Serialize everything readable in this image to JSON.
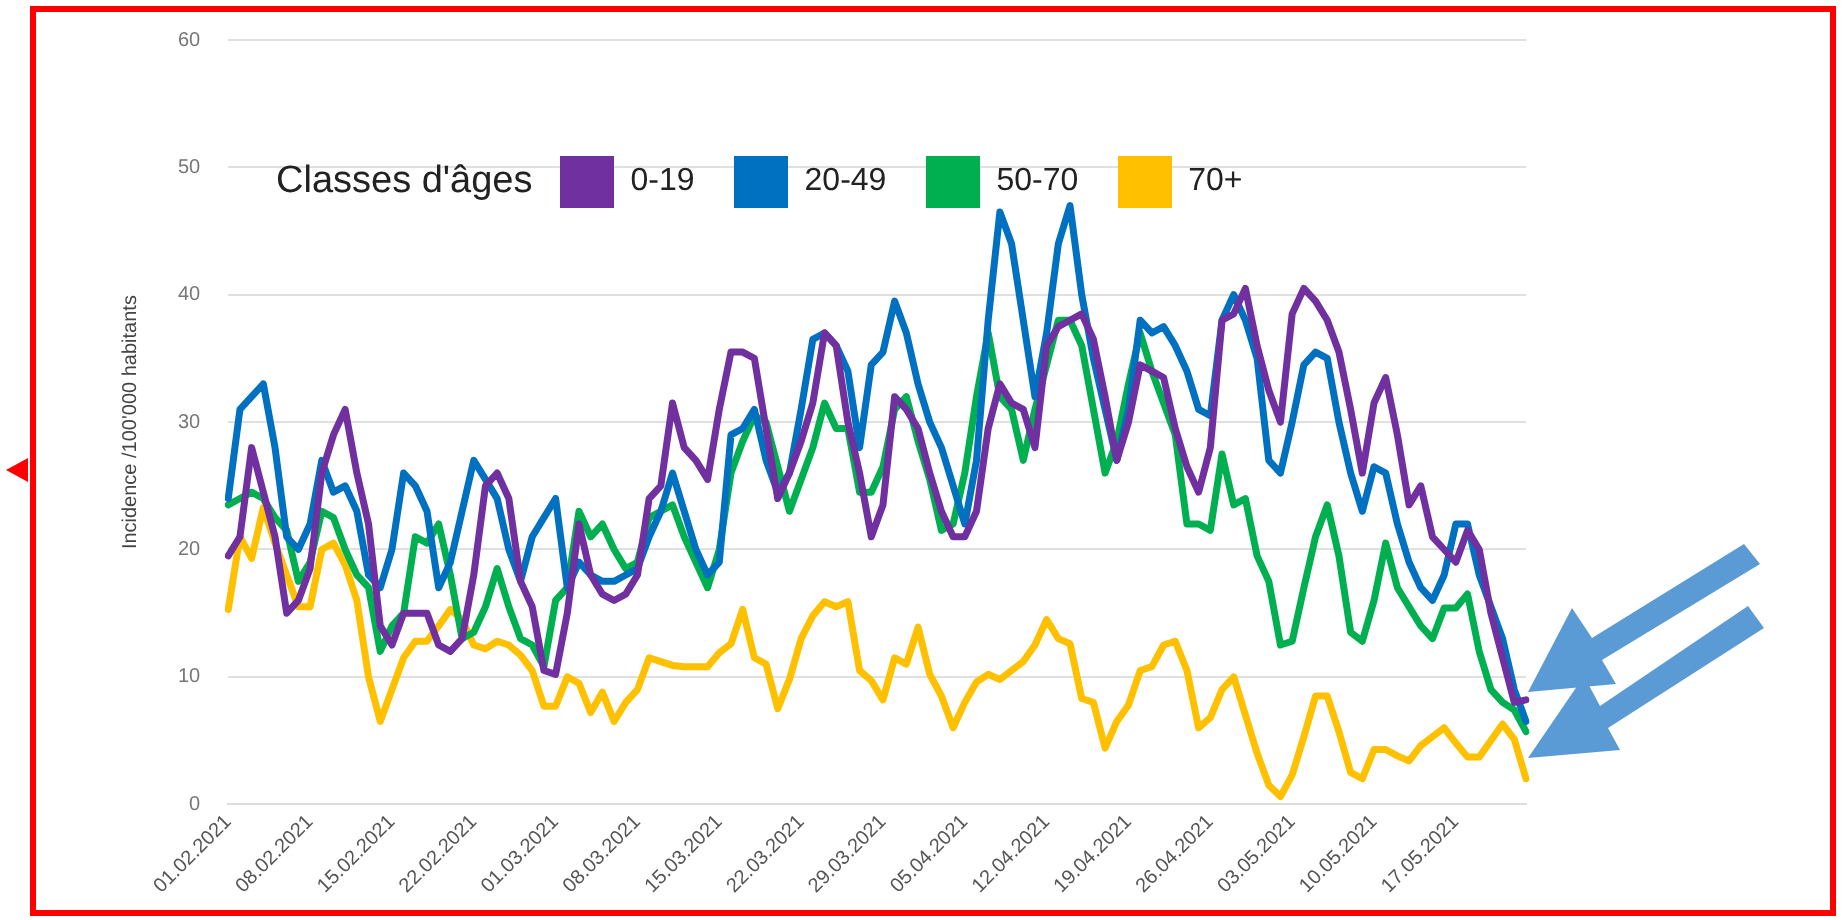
{
  "chart_data": {
    "type": "line",
    "ylabel": "Incidence /100'000 habitants",
    "legend_title": "Classes d'âges",
    "legend": "top",
    "grid": "y",
    "marker": "none",
    "line_style": "solid",
    "ylim": [
      0,
      60
    ],
    "yticks": [
      0,
      10,
      20,
      30,
      40,
      50,
      60
    ],
    "categories": [
      "01.02.2021",
      null,
      null,
      null,
      null,
      null,
      null,
      "08.02.2021",
      null,
      null,
      null,
      null,
      null,
      null,
      "15.02.2021",
      null,
      null,
      null,
      null,
      null,
      null,
      "22.02.2021",
      null,
      null,
      null,
      null,
      null,
      null,
      "01.03.2021",
      null,
      null,
      null,
      null,
      null,
      null,
      "08.03.2021",
      null,
      null,
      null,
      null,
      null,
      null,
      "15.03.2021",
      null,
      null,
      null,
      null,
      null,
      null,
      "22.03.2021",
      null,
      null,
      null,
      null,
      null,
      null,
      "29.03.2021",
      null,
      null,
      null,
      null,
      null,
      null,
      "05.04.2021",
      null,
      null,
      null,
      null,
      null,
      null,
      "12.04.2021",
      null,
      null,
      null,
      null,
      null,
      null,
      "19.04.2021",
      null,
      null,
      null,
      null,
      null,
      null,
      "26.04.2021",
      null,
      null,
      null,
      null,
      null,
      null,
      "03.05.2021",
      null,
      null,
      null,
      null,
      null,
      null,
      "10.05.2021",
      null,
      null,
      null,
      null,
      null,
      null,
      "17.05.2021",
      null,
      null,
      null,
      null,
      null,
      null
    ],
    "series": [
      {
        "name": "0-19",
        "color": "#7030a0",
        "values": [
          19.5,
          21,
          28,
          24.5,
          21,
          15,
          16,
          18.5,
          26,
          29,
          31,
          26,
          22,
          14,
          12.5,
          15,
          15,
          15,
          12.5,
          12,
          13,
          18,
          25,
          26,
          24,
          17.5,
          15.5,
          10.5,
          10.2,
          15,
          22,
          18,
          16.5,
          16,
          16.5,
          18,
          24,
          25,
          31.5,
          28,
          27,
          25.5,
          31,
          35.5,
          35.5,
          35,
          29.5,
          24,
          26,
          28.5,
          31.5,
          37,
          36,
          30,
          26,
          21,
          23.5,
          32,
          31,
          29.5,
          26,
          23,
          21,
          21,
          23,
          29.5,
          33,
          31.5,
          31,
          28,
          36,
          37.5,
          38,
          38.5,
          36.5,
          32,
          27,
          30,
          34.5,
          34,
          33.5,
          29.5,
          26.5,
          24.5,
          28,
          38,
          38.5,
          40.5,
          36,
          32.5,
          30,
          38.5,
          40.5,
          39.5,
          38,
          35.5,
          31,
          26,
          31.5,
          33.5,
          29,
          23.5,
          25,
          21,
          20,
          19,
          21.5,
          20,
          15,
          11.5,
          8,
          8.2
        ]
      },
      {
        "name": "20-49",
        "color": "#0070c0",
        "values": [
          24,
          31,
          32,
          33,
          28,
          21,
          20,
          22,
          27,
          24.5,
          25,
          23,
          18,
          17,
          20,
          26,
          25,
          23,
          17,
          19,
          23,
          27,
          25.5,
          24,
          20,
          17.5,
          21,
          22.5,
          24,
          17,
          19,
          18,
          17.5,
          17.5,
          18,
          18.5,
          21,
          23,
          26,
          23,
          20,
          18,
          19,
          29,
          29.5,
          31,
          27,
          24.5,
          26,
          31,
          36.5,
          37,
          36,
          34,
          28,
          34.5,
          35.5,
          39.5,
          37,
          33,
          30,
          28,
          25,
          22,
          27,
          38,
          46.5,
          44,
          38,
          32,
          37,
          44,
          47,
          40,
          35,
          31,
          27,
          31,
          38,
          37,
          37.5,
          36,
          34,
          31,
          30.5,
          38,
          40,
          38,
          35,
          27,
          26,
          30,
          34.5,
          35.5,
          35,
          30,
          26,
          23,
          26.5,
          26,
          22,
          19,
          17,
          16,
          18,
          22,
          22,
          18,
          15.5,
          13,
          9,
          6.5
        ]
      },
      {
        "name": "50-70",
        "color": "#00b050",
        "values": [
          23.5,
          24,
          24.5,
          24,
          22.5,
          21.5,
          17.5,
          19,
          23,
          22.5,
          20,
          18,
          17,
          12,
          14,
          15,
          21,
          20.5,
          22,
          18,
          13,
          13.5,
          15.5,
          18.5,
          15.5,
          13,
          12.5,
          10.8,
          16,
          17,
          23,
          21,
          22,
          20,
          18.5,
          19,
          22.5,
          23,
          23.5,
          21,
          19,
          17,
          20,
          26,
          28.5,
          30.5,
          30,
          26.5,
          23,
          25.5,
          28,
          31.5,
          29.5,
          29.5,
          24.5,
          24.5,
          26.5,
          31,
          32,
          28.5,
          25.5,
          21.5,
          22,
          26,
          32,
          37,
          32,
          31,
          27,
          31,
          34.5,
          38,
          38,
          36,
          31,
          26,
          28.5,
          33,
          37,
          34,
          31.5,
          29,
          22,
          22,
          21.5,
          27.5,
          23.5,
          24,
          19.5,
          17.5,
          12.5,
          12.8,
          17,
          21,
          23.5,
          19.5,
          13.5,
          12.8,
          16,
          20.5,
          17,
          15.5,
          14,
          13,
          15.4,
          15.4,
          16.5,
          12,
          9,
          8,
          7.4,
          5.7
        ]
      },
      {
        "name": "70+",
        "color": "#ffc000",
        "values": [
          15.3,
          21,
          19.3,
          23.3,
          20.5,
          18,
          15.5,
          15.5,
          20,
          20.5,
          18.8,
          16,
          10,
          6.5,
          9,
          11.5,
          12.8,
          12.8,
          14,
          15.3,
          14.5,
          12.5,
          12.2,
          12.8,
          12.5,
          11.7,
          10.5,
          7.7,
          7.7,
          10,
          9.5,
          7.2,
          8.8,
          6.5,
          8,
          9,
          11.5,
          11.2,
          10.9,
          10.8,
          10.8,
          10.8,
          11.9,
          12.6,
          15.3,
          11.5,
          11,
          7.5,
          9.8,
          13,
          14.8,
          15.9,
          15.5,
          15.9,
          10.5,
          9.7,
          8.2,
          11.5,
          11,
          13.9,
          10.2,
          8.5,
          6,
          8,
          9.6,
          10.2,
          9.8,
          10.5,
          11.2,
          12.5,
          14.5,
          13,
          12.6,
          8.3,
          8,
          4.4,
          6.5,
          7.8,
          10.5,
          10.8,
          12.5,
          12.8,
          10.5,
          6,
          6.8,
          9,
          10,
          7,
          4,
          1.5,
          0.6,
          2.3,
          5.3,
          8.5,
          8.5,
          5.7,
          2.5,
          2,
          4.3,
          4.3,
          3.8,
          3.4,
          4.6,
          5.3,
          6,
          4.8,
          3.7,
          3.7,
          5,
          6.3,
          5.1,
          2
        ]
      }
    ]
  }
}
